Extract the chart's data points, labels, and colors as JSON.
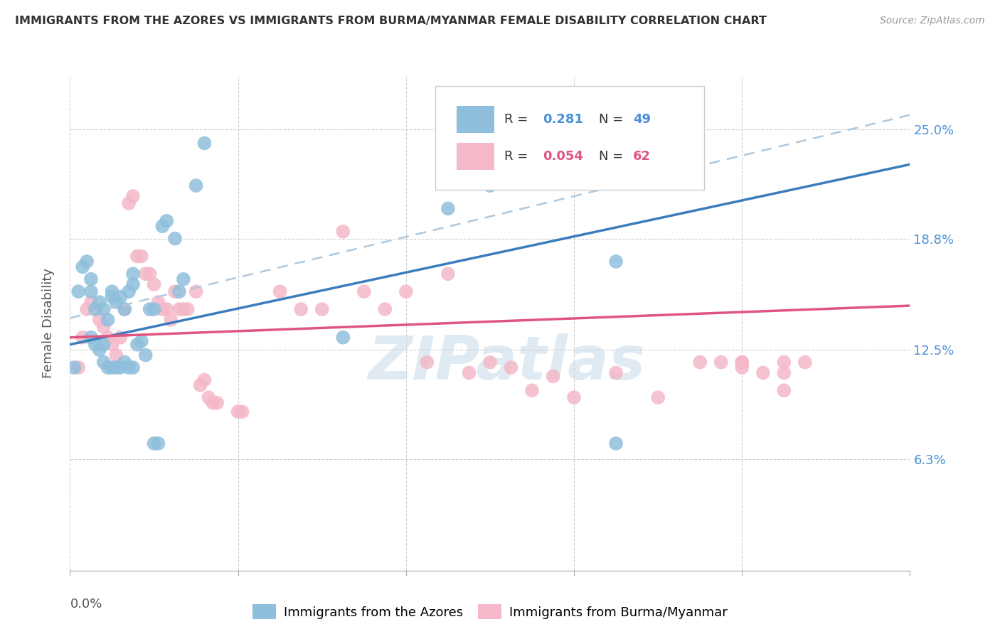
{
  "title": "IMMIGRANTS FROM THE AZORES VS IMMIGRANTS FROM BURMA/MYANMAR FEMALE DISABILITY CORRELATION CHART",
  "source": "Source: ZipAtlas.com",
  "ylabel": "Female Disability",
  "watermark": "ZIPatlas",
  "y_ticks": [
    0.0,
    0.063,
    0.125,
    0.188,
    0.25
  ],
  "y_tick_labels": [
    "",
    "6.3%",
    "12.5%",
    "18.8%",
    "25.0%"
  ],
  "x_lim": [
    0.0,
    0.2
  ],
  "y_lim": [
    0.0,
    0.28
  ],
  "legend_blue_r": "R = ",
  "legend_blue_r_val": "0.281",
  "legend_blue_n": "N = ",
  "legend_blue_n_val": "49",
  "legend_pink_r": "R = ",
  "legend_pink_r_val": "0.054",
  "legend_pink_n": "N = ",
  "legend_pink_n_val": "62",
  "blue_color": "#8fbfdc",
  "pink_color": "#f4b8c8",
  "blue_line_color": "#3a7dbf",
  "pink_line_color": "#e05580",
  "blue_dashed_color": "#b0c8dc",
  "blue_points": [
    [
      0.001,
      0.115
    ],
    [
      0.002,
      0.158
    ],
    [
      0.003,
      0.172
    ],
    [
      0.004,
      0.175
    ],
    [
      0.005,
      0.158
    ],
    [
      0.005,
      0.165
    ],
    [
      0.006,
      0.148
    ],
    [
      0.007,
      0.152
    ],
    [
      0.008,
      0.148
    ],
    [
      0.009,
      0.142
    ],
    [
      0.01,
      0.158
    ],
    [
      0.01,
      0.155
    ],
    [
      0.011,
      0.152
    ],
    [
      0.012,
      0.155
    ],
    [
      0.013,
      0.148
    ],
    [
      0.014,
      0.158
    ],
    [
      0.015,
      0.162
    ],
    [
      0.015,
      0.168
    ],
    [
      0.016,
      0.128
    ],
    [
      0.017,
      0.13
    ],
    [
      0.018,
      0.122
    ],
    [
      0.019,
      0.148
    ],
    [
      0.02,
      0.148
    ],
    [
      0.022,
      0.195
    ],
    [
      0.023,
      0.198
    ],
    [
      0.025,
      0.188
    ],
    [
      0.026,
      0.158
    ],
    [
      0.027,
      0.165
    ],
    [
      0.03,
      0.218
    ],
    [
      0.032,
      0.242
    ],
    [
      0.005,
      0.132
    ],
    [
      0.006,
      0.128
    ],
    [
      0.007,
      0.125
    ],
    [
      0.008,
      0.128
    ],
    [
      0.008,
      0.118
    ],
    [
      0.009,
      0.115
    ],
    [
      0.01,
      0.115
    ],
    [
      0.011,
      0.115
    ],
    [
      0.012,
      0.115
    ],
    [
      0.013,
      0.118
    ],
    [
      0.014,
      0.115
    ],
    [
      0.015,
      0.115
    ],
    [
      0.02,
      0.072
    ],
    [
      0.021,
      0.072
    ],
    [
      0.065,
      0.132
    ],
    [
      0.09,
      0.205
    ],
    [
      0.1,
      0.218
    ],
    [
      0.13,
      0.072
    ],
    [
      0.13,
      0.175
    ]
  ],
  "pink_points": [
    [
      0.002,
      0.115
    ],
    [
      0.003,
      0.132
    ],
    [
      0.004,
      0.148
    ],
    [
      0.005,
      0.152
    ],
    [
      0.006,
      0.148
    ],
    [
      0.007,
      0.142
    ],
    [
      0.008,
      0.138
    ],
    [
      0.009,
      0.132
    ],
    [
      0.01,
      0.128
    ],
    [
      0.011,
      0.122
    ],
    [
      0.012,
      0.132
    ],
    [
      0.013,
      0.148
    ],
    [
      0.014,
      0.208
    ],
    [
      0.015,
      0.212
    ],
    [
      0.016,
      0.178
    ],
    [
      0.017,
      0.178
    ],
    [
      0.018,
      0.168
    ],
    [
      0.019,
      0.168
    ],
    [
      0.02,
      0.162
    ],
    [
      0.021,
      0.152
    ],
    [
      0.022,
      0.148
    ],
    [
      0.023,
      0.148
    ],
    [
      0.024,
      0.142
    ],
    [
      0.025,
      0.158
    ],
    [
      0.026,
      0.148
    ],
    [
      0.027,
      0.148
    ],
    [
      0.028,
      0.148
    ],
    [
      0.03,
      0.158
    ],
    [
      0.031,
      0.105
    ],
    [
      0.032,
      0.108
    ],
    [
      0.033,
      0.098
    ],
    [
      0.034,
      0.095
    ],
    [
      0.035,
      0.095
    ],
    [
      0.04,
      0.09
    ],
    [
      0.041,
      0.09
    ],
    [
      0.05,
      0.158
    ],
    [
      0.055,
      0.148
    ],
    [
      0.06,
      0.148
    ],
    [
      0.065,
      0.192
    ],
    [
      0.07,
      0.158
    ],
    [
      0.075,
      0.148
    ],
    [
      0.08,
      0.158
    ],
    [
      0.085,
      0.118
    ],
    [
      0.09,
      0.168
    ],
    [
      0.095,
      0.112
    ],
    [
      0.1,
      0.118
    ],
    [
      0.11,
      0.102
    ],
    [
      0.12,
      0.098
    ],
    [
      0.13,
      0.112
    ],
    [
      0.14,
      0.098
    ],
    [
      0.15,
      0.118
    ],
    [
      0.155,
      0.118
    ],
    [
      0.16,
      0.118
    ],
    [
      0.165,
      0.112
    ],
    [
      0.17,
      0.118
    ],
    [
      0.175,
      0.118
    ],
    [
      0.115,
      0.11
    ],
    [
      0.105,
      0.115
    ],
    [
      0.16,
      0.118
    ],
    [
      0.17,
      0.102
    ],
    [
      0.16,
      0.115
    ],
    [
      0.17,
      0.112
    ]
  ],
  "blue_trend": [
    0.0,
    0.2,
    0.128,
    0.23
  ],
  "pink_trend": [
    0.0,
    0.2,
    0.132,
    0.15
  ],
  "blue_dashed": [
    0.0,
    0.2,
    0.143,
    0.258
  ]
}
